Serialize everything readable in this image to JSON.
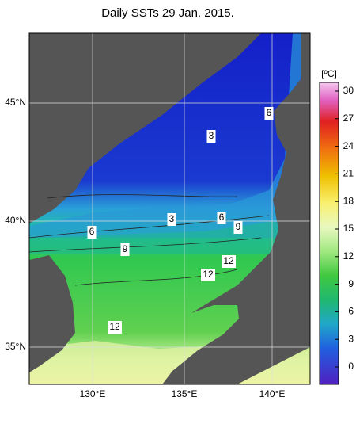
{
  "title": "Daily SSTs 29 Jan. 2015.",
  "lat_labels": [
    "45°N",
    "40°N",
    "35°N"
  ],
  "lon_labels": [
    "130°E",
    "135°E",
    "140°E"
  ],
  "colorbar": {
    "unit": "[ºC]",
    "ticks": [
      30,
      27,
      24,
      21,
      18,
      15,
      12,
      9,
      6,
      3,
      0
    ]
  },
  "contour_labels": [
    "6",
    "3",
    "3",
    "6",
    "9",
    "6",
    "9",
    "12",
    "12",
    "12"
  ]
}
